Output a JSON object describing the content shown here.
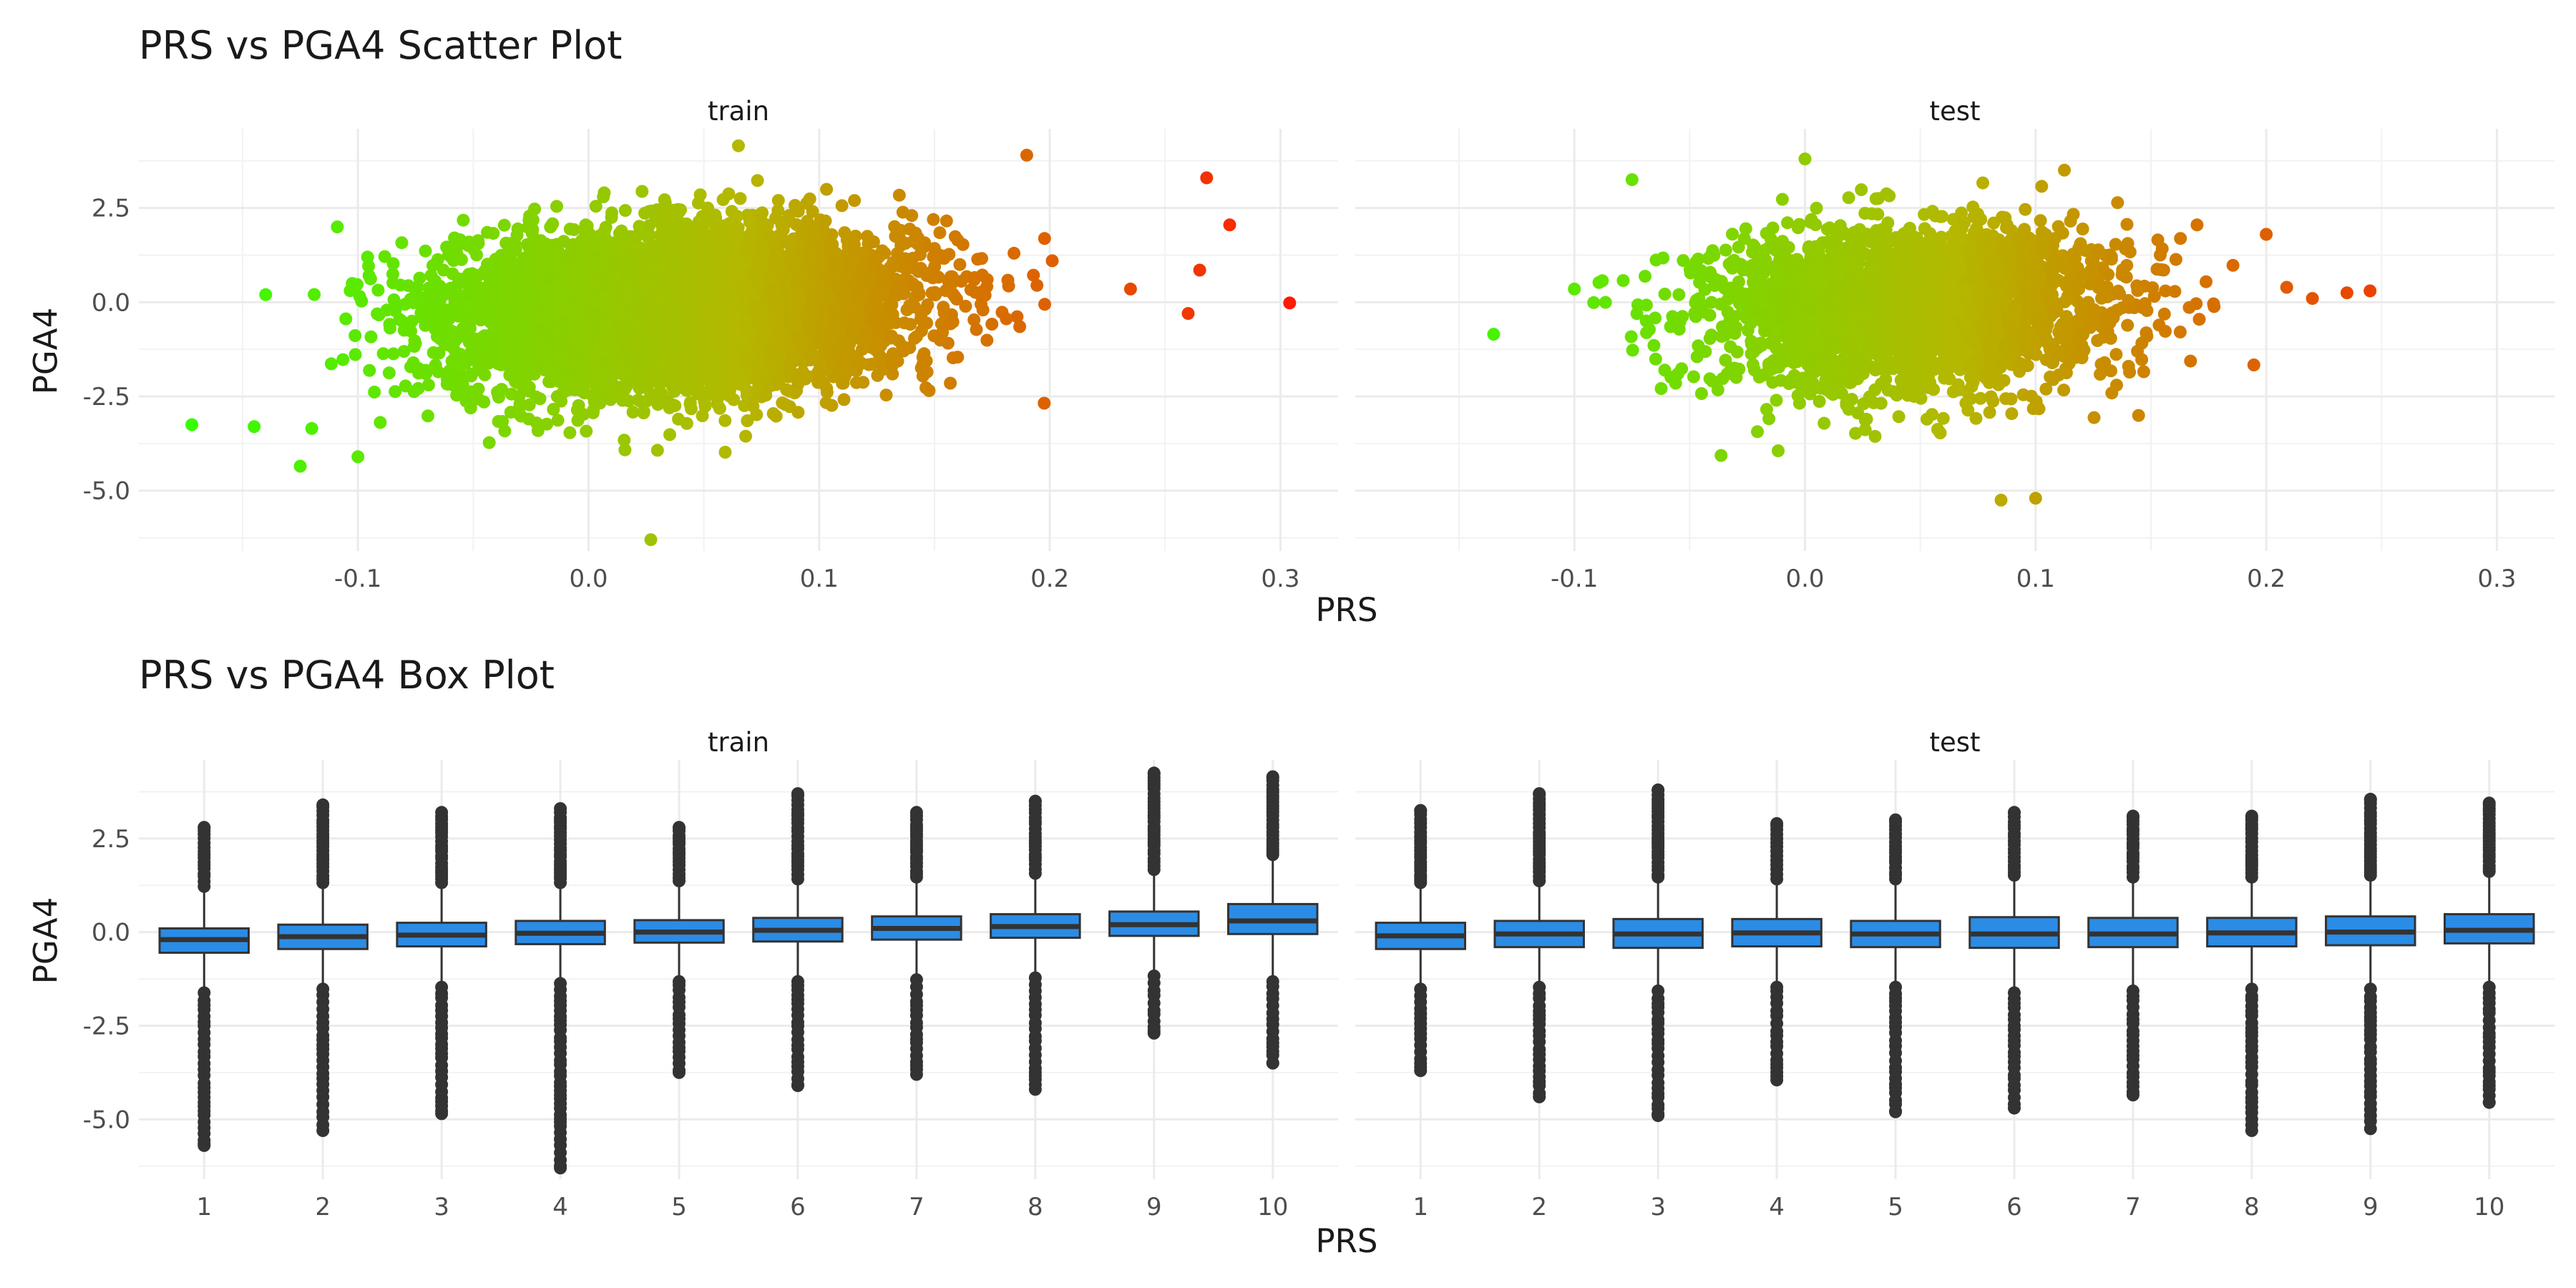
{
  "figure": {
    "scatter_title": "PRS vs PGA4 Scatter Plot",
    "box_title": "PRS vs PGA4 Box Plot"
  },
  "chart_data": [
    {
      "type": "scatter",
      "title": "PRS vs PGA4 Scatter Plot",
      "xlabel": "PRS",
      "ylabel": "PGA4",
      "xlim": [
        -0.195,
        0.325
      ],
      "ylim": [
        -6.6,
        4.6
      ],
      "x_ticks": [
        "-0.1",
        "0.0",
        "0.1",
        "0.2",
        "0.3"
      ],
      "x_tick_values": [
        -0.1,
        0.0,
        0.1,
        0.2,
        0.3
      ],
      "y_ticks": [
        "-5.0",
        "-2.5",
        "0.0",
        "2.5"
      ],
      "y_tick_values": [
        -5.0,
        -2.5,
        0.0,
        2.5
      ],
      "grid": true,
      "color_scale": {
        "low": "#00ff00",
        "high": "#ff0000",
        "variable": "PRS"
      },
      "legend": "none",
      "panels": [
        {
          "name": "train",
          "summary": {
            "x_center": 0.04,
            "x_sd": 0.05,
            "y_center": 0.0,
            "y_sd": 1.0,
            "slope": 5.0
          },
          "notable_points": [
            {
              "x": -0.172,
              "y": -3.25
            },
            {
              "x": -0.145,
              "y": -3.3
            },
            {
              "x": -0.14,
              "y": 0.2
            },
            {
              "x": -0.125,
              "y": -4.35
            },
            {
              "x": -0.12,
              "y": -3.35
            },
            {
              "x": -0.1,
              "y": -4.1
            },
            {
              "x": 0.027,
              "y": -6.3
            },
            {
              "x": 0.065,
              "y": 4.15
            },
            {
              "x": 0.19,
              "y": 3.9
            },
            {
              "x": 0.235,
              "y": 0.35
            },
            {
              "x": 0.26,
              "y": -0.3
            },
            {
              "x": 0.265,
              "y": 0.85
            },
            {
              "x": 0.268,
              "y": 3.3
            },
            {
              "x": 0.278,
              "y": 2.05
            },
            {
              "x": 0.304,
              "y": -0.02
            }
          ]
        },
        {
          "name": "test",
          "summary": {
            "x_center": 0.045,
            "x_sd": 0.045,
            "y_center": 0.0,
            "y_sd": 1.0,
            "slope": 5.0
          },
          "notable_points": [
            {
              "x": -0.135,
              "y": -0.85
            },
            {
              "x": -0.1,
              "y": 0.35
            },
            {
              "x": -0.075,
              "y": 3.25
            },
            {
              "x": 0.0,
              "y": 3.8
            },
            {
              "x": 0.085,
              "y": -5.25
            },
            {
              "x": 0.1,
              "y": -5.2
            },
            {
              "x": 0.17,
              "y": 2.05
            },
            {
              "x": 0.2,
              "y": 1.8
            },
            {
              "x": 0.22,
              "y": 0.1
            },
            {
              "x": 0.235,
              "y": 0.25
            },
            {
              "x": 0.245,
              "y": 0.3
            }
          ]
        }
      ]
    },
    {
      "type": "box",
      "title": "PRS vs PGA4 Box Plot",
      "xlabel": "PRS",
      "ylabel": "PGA4",
      "categories": [
        "1",
        "2",
        "3",
        "4",
        "5",
        "6",
        "7",
        "8",
        "9",
        "10"
      ],
      "ylim": [
        -6.6,
        4.6
      ],
      "y_ticks": [
        "-5.0",
        "-2.5",
        "0.0",
        "2.5"
      ],
      "y_tick_values": [
        -5.0,
        -2.5,
        0.0,
        2.5
      ],
      "grid": true,
      "box_fill": "#2b8ce6",
      "box_line": "#333333",
      "legend": "none",
      "panels": [
        {
          "name": "train",
          "boxes": [
            {
              "q1": -0.55,
              "median": -0.2,
              "q3": 0.1,
              "lower": -1.5,
              "upper": 1.1,
              "out_min": -5.7,
              "out_max": 2.8
            },
            {
              "q1": -0.45,
              "median": -0.12,
              "q3": 0.2,
              "lower": -1.4,
              "upper": 1.2,
              "out_min": -5.3,
              "out_max": 3.4
            },
            {
              "q1": -0.38,
              "median": -0.08,
              "q3": 0.25,
              "lower": -1.35,
              "upper": 1.2,
              "out_min": -4.85,
              "out_max": 3.2
            },
            {
              "q1": -0.32,
              "median": -0.03,
              "q3": 0.3,
              "lower": -1.25,
              "upper": 1.2,
              "out_min": -6.3,
              "out_max": 3.3
            },
            {
              "q1": -0.28,
              "median": 0.0,
              "q3": 0.32,
              "lower": -1.2,
              "upper": 1.25,
              "out_min": -3.75,
              "out_max": 2.8
            },
            {
              "q1": -0.25,
              "median": 0.05,
              "q3": 0.38,
              "lower": -1.2,
              "upper": 1.3,
              "out_min": -4.1,
              "out_max": 3.7
            },
            {
              "q1": -0.2,
              "median": 0.1,
              "q3": 0.42,
              "lower": -1.15,
              "upper": 1.35,
              "out_min": -3.8,
              "out_max": 3.2
            },
            {
              "q1": -0.15,
              "median": 0.15,
              "q3": 0.48,
              "lower": -1.1,
              "upper": 1.45,
              "out_min": -4.2,
              "out_max": 3.5
            },
            {
              "q1": -0.1,
              "median": 0.2,
              "q3": 0.55,
              "lower": -1.05,
              "upper": 1.55,
              "out_min": -2.7,
              "out_max": 4.25
            },
            {
              "q1": -0.05,
              "median": 0.3,
              "q3": 0.75,
              "lower": -1.2,
              "upper": 1.95,
              "out_min": -3.5,
              "out_max": 4.15
            }
          ]
        },
        {
          "name": "test",
          "boxes": [
            {
              "q1": -0.45,
              "median": -0.1,
              "q3": 0.25,
              "lower": -1.4,
              "upper": 1.2,
              "out_min": -3.7,
              "out_max": 3.25
            },
            {
              "q1": -0.4,
              "median": -0.05,
              "q3": 0.3,
              "lower": -1.35,
              "upper": 1.25,
              "out_min": -4.4,
              "out_max": 3.7
            },
            {
              "q1": -0.42,
              "median": -0.05,
              "q3": 0.35,
              "lower": -1.45,
              "upper": 1.35,
              "out_min": -4.9,
              "out_max": 3.8
            },
            {
              "q1": -0.38,
              "median": -0.02,
              "q3": 0.35,
              "lower": -1.35,
              "upper": 1.3,
              "out_min": -3.95,
              "out_max": 2.9
            },
            {
              "q1": -0.4,
              "median": -0.05,
              "q3": 0.3,
              "lower": -1.35,
              "upper": 1.3,
              "out_min": -4.8,
              "out_max": 3.0
            },
            {
              "q1": -0.42,
              "median": -0.05,
              "q3": 0.4,
              "lower": -1.5,
              "upper": 1.4,
              "out_min": -4.7,
              "out_max": 3.2
            },
            {
              "q1": -0.4,
              "median": -0.05,
              "q3": 0.38,
              "lower": -1.45,
              "upper": 1.35,
              "out_min": -4.35,
              "out_max": 3.1
            },
            {
              "q1": -0.38,
              "median": -0.02,
              "q3": 0.38,
              "lower": -1.4,
              "upper": 1.35,
              "out_min": -5.3,
              "out_max": 3.1
            },
            {
              "q1": -0.35,
              "median": 0.0,
              "q3": 0.42,
              "lower": -1.4,
              "upper": 1.4,
              "out_min": -5.25,
              "out_max": 3.55
            },
            {
              "q1": -0.3,
              "median": 0.05,
              "q3": 0.48,
              "lower": -1.35,
              "upper": 1.5,
              "out_min": -4.55,
              "out_max": 3.45
            }
          ]
        }
      ]
    }
  ]
}
